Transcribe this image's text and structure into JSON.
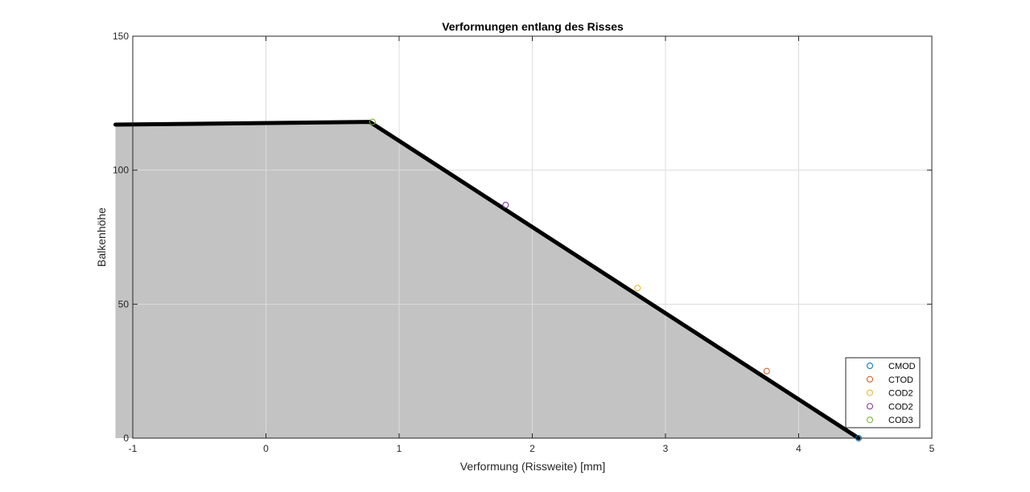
{
  "chart_data": {
    "type": "line",
    "title": "Verformungen entlang des Risses",
    "xlabel": "Verformung (Rissweite) [mm]",
    "ylabel": "Balkenhöhe",
    "xlim": [
      -1,
      5
    ],
    "ylim": [
      0,
      150
    ],
    "x_ticks": [
      -1,
      0,
      1,
      2,
      3,
      4,
      5
    ],
    "y_ticks": [
      0,
      50,
      100,
      150
    ],
    "x_tick_labels": [
      "-1",
      "0",
      "1",
      "2",
      "3",
      "4",
      "5"
    ],
    "y_tick_labels": [
      "0",
      "50",
      "100",
      "150"
    ],
    "grid": true,
    "legend_position": "bottom-right",
    "profile": {
      "color": "#000000",
      "fill_color": "#c3c3c3",
      "x": [
        -1.13,
        0.78,
        4.45
      ],
      "y": [
        117,
        118,
        0
      ]
    },
    "series": [
      {
        "name": "CMOD",
        "color": "#0072bd",
        "x": [
          4.45
        ],
        "y": [
          0
        ]
      },
      {
        "name": "CTOD",
        "color": "#d95319",
        "x": [
          3.76
        ],
        "y": [
          25
        ]
      },
      {
        "name": "COD2",
        "color": "#edb120",
        "x": [
          2.79
        ],
        "y": [
          56
        ]
      },
      {
        "name": "COD2",
        "color": "#7e2f8e",
        "x": [
          1.8
        ],
        "y": [
          87
        ]
      },
      {
        "name": "COD3",
        "color": "#77ac30",
        "x": [
          0.8
        ],
        "y": [
          118
        ]
      }
    ]
  }
}
